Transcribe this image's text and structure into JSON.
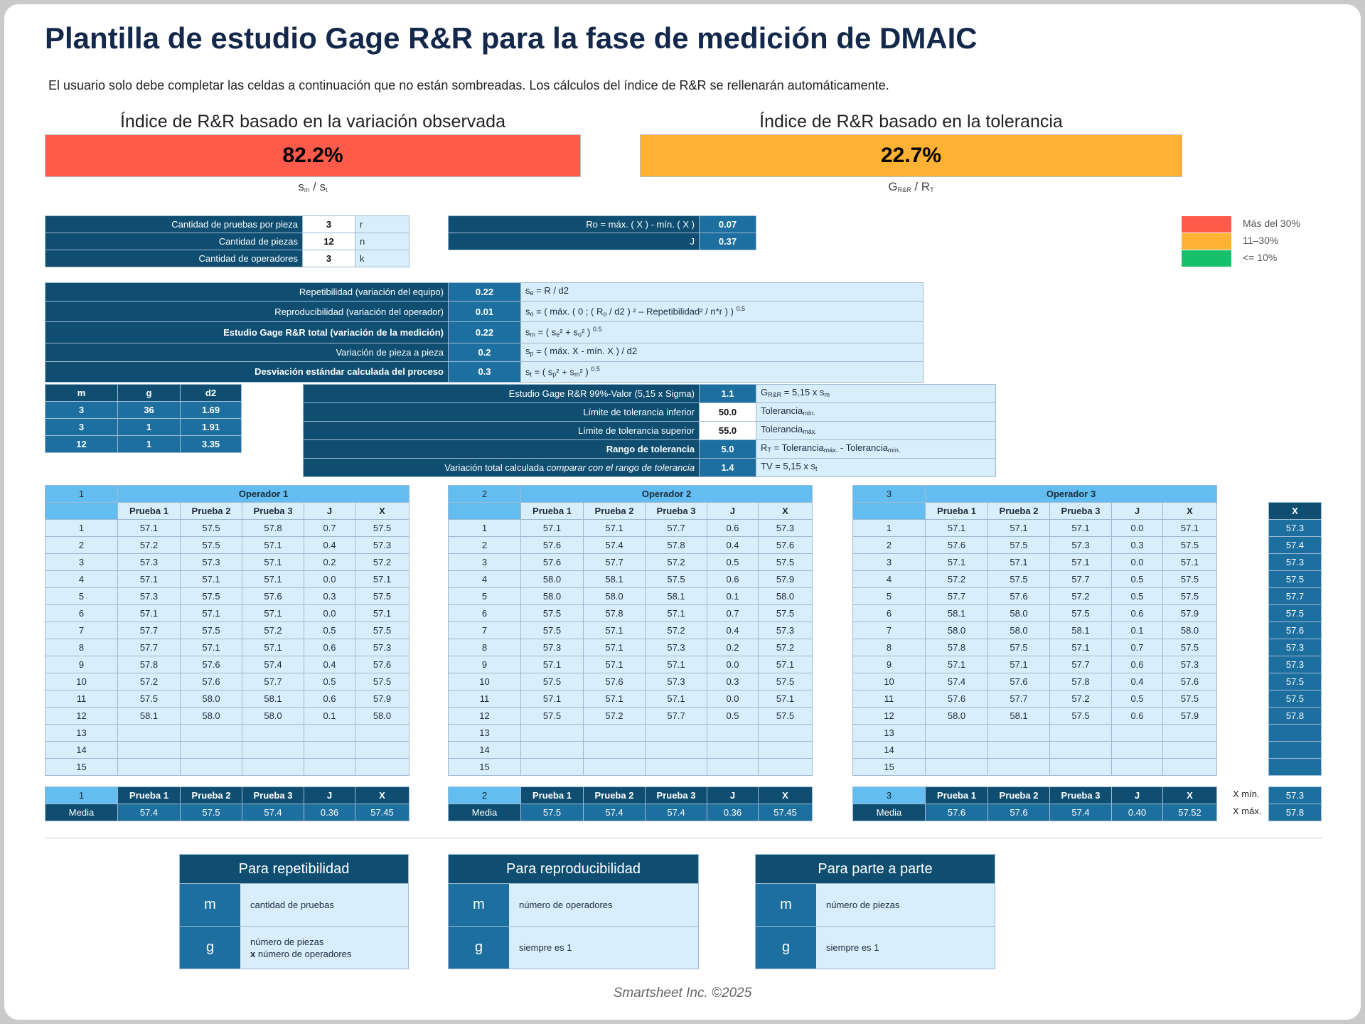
{
  "title": "Plantilla de estudio Gage R&R para la fase de medición de DMAIC",
  "subtitle": "El usuario solo debe completar las celdas a continuación que no están sombreadas.   Los cálculos del índice de R&R se rellenarán automáticamente.",
  "index_observed": {
    "label": "Índice de R&R basado en la variación observada",
    "value": "82.2%",
    "formula": "sm / st",
    "color": "#ff5a4a"
  },
  "index_tolerance": {
    "label": "Índice de R&R basado en la tolerancia",
    "value": "22.7%",
    "formula": "GR&R / RT",
    "color": "#ffb133"
  },
  "inputs": [
    {
      "label": "Cantidad de pruebas por pieza",
      "value": "3",
      "symbol": "r"
    },
    {
      "label": "Cantidad de piezas",
      "value": "12",
      "symbol": "n"
    },
    {
      "label": "Cantidad de operadores",
      "value": "3",
      "symbol": "k"
    }
  ],
  "ranges": [
    {
      "label": "Ro = máx. ( X ) - mín. ( X )",
      "value": "0.07"
    },
    {
      "label": "J",
      "value": "0.37"
    }
  ],
  "legend": [
    {
      "label": "Más del 30%",
      "color": "#ff5a4a"
    },
    {
      "label": "11–30%",
      "color": "#ffb133"
    },
    {
      "label": "<= 10%",
      "color": "#17c06a"
    }
  ],
  "variation": [
    {
      "label": "Repetibilidad (variación del equipo)",
      "value": "0.22",
      "formula": "se = R / d2",
      "bold": false
    },
    {
      "label": "Reproducibilidad (variación del operador)",
      "value": "0.01",
      "formula": "so = ( máx. ( 0 ; ( Ro / d2 ) ² – Repetibilidad² / n*r ) ) 0.5",
      "bold": false
    },
    {
      "label": "Estudio Gage R&R total (variación de la medición)",
      "value": "0.22",
      "formula": "sm = ( se² + so² ) 0.5",
      "bold": true
    },
    {
      "label": "Variación de pieza a pieza",
      "value": "0.2",
      "formula": "sp = ( máx. X - mín. X ) / d2",
      "bold": false
    },
    {
      "label": "Desviación estándar calculada del proceso",
      "value": "0.3",
      "formula": "st = ( sp² + sm² ) 0.5",
      "bold": true
    }
  ],
  "d2_table": {
    "headers": [
      "m",
      "g",
      "d2"
    ],
    "rows": [
      [
        "3",
        "36",
        "1.69"
      ],
      [
        "3",
        "1",
        "1.91"
      ],
      [
        "12",
        "1",
        "3.35"
      ]
    ]
  },
  "tolerance": [
    {
      "label": "Estudio Gage R&R 99%-Valor (5,15 x Sigma)",
      "value": "1.1",
      "formula": "GR&R = 5,15 x sm",
      "bold": false,
      "input": false
    },
    {
      "label": "Límite de tolerancia inferior",
      "value": "50.0",
      "formula": "Toleranciamín.",
      "bold": false,
      "input": true
    },
    {
      "label": "Límite de tolerancia superior",
      "value": "55.0",
      "formula": "Toleranciamáx.",
      "bold": false,
      "input": true
    },
    {
      "label": "Rango de tolerancia",
      "value": "5.0",
      "formula": "RT = Toleranciamáx. - Toleranciamín.",
      "bold": true,
      "input": false
    },
    {
      "label": "Variación total calculada comparar con el rango de tolerancia",
      "value": "1.4",
      "formula": "TV = 5,15 x st",
      "bold": false,
      "input": false
    }
  ],
  "col_headers": [
    "Prueba 1",
    "Prueba 2",
    "Prueba 3",
    "J",
    "X"
  ],
  "operators": [
    {
      "num": "1",
      "name": "Operador 1",
      "rows": [
        [
          "57.1",
          "57.5",
          "57.8",
          "0.7",
          "57.5"
        ],
        [
          "57.2",
          "57.5",
          "57.1",
          "0.4",
          "57.3"
        ],
        [
          "57.3",
          "57.3",
          "57.1",
          "0.2",
          "57.2"
        ],
        [
          "57.1",
          "57.1",
          "57.1",
          "0.0",
          "57.1"
        ],
        [
          "57.3",
          "57.5",
          "57.6",
          "0.3",
          "57.5"
        ],
        [
          "57.1",
          "57.1",
          "57.1",
          "0.0",
          "57.1"
        ],
        [
          "57.7",
          "57.5",
          "57.2",
          "0.5",
          "57.5"
        ],
        [
          "57.7",
          "57.1",
          "57.1",
          "0.6",
          "57.3"
        ],
        [
          "57.8",
          "57.6",
          "57.4",
          "0.4",
          "57.6"
        ],
        [
          "57.2",
          "57.6",
          "57.7",
          "0.5",
          "57.5"
        ],
        [
          "57.5",
          "58.0",
          "58.1",
          "0.6",
          "57.9"
        ],
        [
          "58.1",
          "58.0",
          "58.0",
          "0.1",
          "58.0"
        ]
      ],
      "mean": [
        "57.4",
        "57.5",
        "57.4",
        "0.36",
        "57.45"
      ]
    },
    {
      "num": "2",
      "name": "Operador 2",
      "rows": [
        [
          "57.1",
          "57.1",
          "57.7",
          "0.6",
          "57.3"
        ],
        [
          "57.6",
          "57.4",
          "57.8",
          "0.4",
          "57.6"
        ],
        [
          "57.6",
          "57.7",
          "57.2",
          "0.5",
          "57.5"
        ],
        [
          "58.0",
          "58.1",
          "57.5",
          "0.6",
          "57.9"
        ],
        [
          "58.0",
          "58.0",
          "58.1",
          "0.1",
          "58.0"
        ],
        [
          "57.5",
          "57.8",
          "57.1",
          "0.7",
          "57.5"
        ],
        [
          "57.5",
          "57.1",
          "57.2",
          "0.4",
          "57.3"
        ],
        [
          "57.3",
          "57.1",
          "57.3",
          "0.2",
          "57.2"
        ],
        [
          "57.1",
          "57.1",
          "57.1",
          "0.0",
          "57.1"
        ],
        [
          "57.5",
          "57.6",
          "57.3",
          "0.3",
          "57.5"
        ],
        [
          "57.1",
          "57.1",
          "57.1",
          "0.0",
          "57.1"
        ],
        [
          "57.5",
          "57.2",
          "57.7",
          "0.5",
          "57.5"
        ]
      ],
      "mean": [
        "57.5",
        "57.4",
        "57.4",
        "0.36",
        "57.45"
      ]
    },
    {
      "num": "3",
      "name": "Operador 3",
      "rows": [
        [
          "57.1",
          "57.1",
          "57.1",
          "0.0",
          "57.1"
        ],
        [
          "57.6",
          "57.5",
          "57.3",
          "0.3",
          "57.5"
        ],
        [
          "57.1",
          "57.1",
          "57.1",
          "0.0",
          "57.1"
        ],
        [
          "57.2",
          "57.5",
          "57.7",
          "0.5",
          "57.5"
        ],
        [
          "57.7",
          "57.6",
          "57.2",
          "0.5",
          "57.5"
        ],
        [
          "58.1",
          "58.0",
          "57.5",
          "0.6",
          "57.9"
        ],
        [
          "58.0",
          "58.0",
          "58.1",
          "0.1",
          "58.0"
        ],
        [
          "57.8",
          "57.5",
          "57.1",
          "0.7",
          "57.5"
        ],
        [
          "57.1",
          "57.1",
          "57.7",
          "0.6",
          "57.3"
        ],
        [
          "57.4",
          "57.6",
          "57.8",
          "0.4",
          "57.6"
        ],
        [
          "57.6",
          "57.7",
          "57.2",
          "0.5",
          "57.5"
        ],
        [
          "58.0",
          "58.1",
          "57.5",
          "0.6",
          "57.9"
        ]
      ],
      "mean": [
        "57.6",
        "57.6",
        "57.4",
        "0.40",
        "57.52"
      ]
    }
  ],
  "row_numbers": [
    "1",
    "2",
    "3",
    "4",
    "5",
    "6",
    "7",
    "8",
    "9",
    "10",
    "11",
    "12",
    "13",
    "14",
    "15"
  ],
  "mean_label": "Media",
  "xbar": {
    "header": "X",
    "values": [
      "57.3",
      "57.4",
      "57.3",
      "57.5",
      "57.7",
      "57.5",
      "57.6",
      "57.3",
      "57.3",
      "57.5",
      "57.5",
      "57.8"
    ],
    "min_label": "X mín.",
    "min_value": "57.3",
    "max_label": "X máx.",
    "max_value": "57.8"
  },
  "cards": [
    {
      "title": "Para repetibilidad",
      "rows": [
        {
          "k": "m",
          "v": "cantidad de pruebas",
          "v2": ""
        },
        {
          "k": "g",
          "v": "número de piezas",
          "v2": "x número de operadores"
        }
      ]
    },
    {
      "title": "Para reproducibilidad",
      "rows": [
        {
          "k": "m",
          "v": "número de operadores",
          "v2": ""
        },
        {
          "k": "g",
          "v": "siempre es 1",
          "v2": ""
        }
      ]
    },
    {
      "title": "Para parte a parte",
      "rows": [
        {
          "k": "m",
          "v": "número de piezas",
          "v2": ""
        },
        {
          "k": "g",
          "v": "siempre es 1",
          "v2": ""
        }
      ]
    }
  ],
  "footer": "Smartsheet Inc. ©2025"
}
